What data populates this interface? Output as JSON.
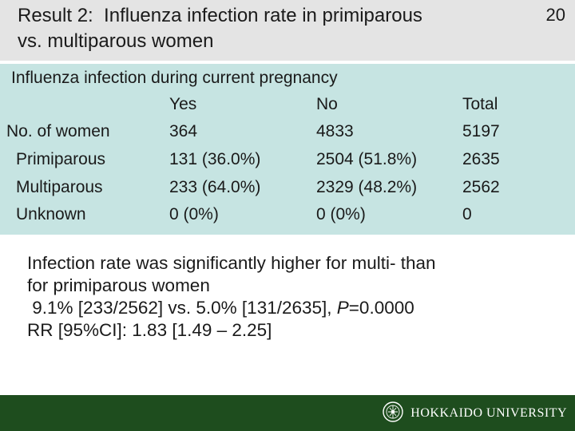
{
  "slide": {
    "title_line1": "Result 2:  Influenza infection rate in primiparous",
    "title_line2": "vs. multiparous women",
    "page_number": "20"
  },
  "table": {
    "caption": "Influenza infection during current pregnancy",
    "columns": [
      "",
      "Yes",
      "No",
      "Total"
    ],
    "rows": [
      {
        "label": "No. of women",
        "yes": "364",
        "no": "4833",
        "total": "5197"
      },
      {
        "label": "Primiparous",
        "yes": "131 (36.0%)",
        "no": "2504 (51.8%)",
        "total": "2635"
      },
      {
        "label": "Multiparous",
        "yes": "233 (64.0%)",
        "no": "2329 (48.2%)",
        "total": "2562"
      },
      {
        "label": "Unknown",
        "yes": "0 (0%)",
        "no": "0 (0%)",
        "total": "0"
      }
    ]
  },
  "summary": {
    "line1": "Infection rate was significantly higher for multi- than",
    "line2": "for primiparous women",
    "line3_prefix": " 9.1% [233/2562] vs. 5.0% [131/2635], ",
    "line3_p": "P",
    "line3_suffix": "=0.0000",
    "line4": "RR [95%CI]: 1.83 [1.49 – 2.25]"
  },
  "footer": {
    "logo_text": "HOKKAIDO UNIVERSITY",
    "logo_icon": "university-crest-icon"
  },
  "colors": {
    "title_bg": "#e4e4e4",
    "table_bg": "#c6e4e2",
    "footer_bg": "#1e4d1e"
  }
}
